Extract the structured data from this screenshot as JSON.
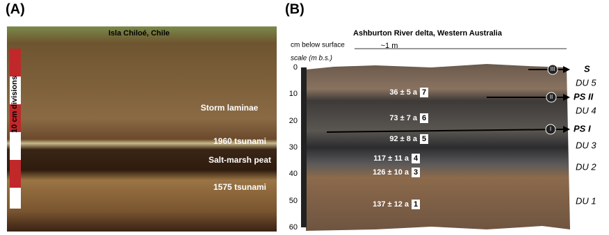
{
  "panel_a": {
    "label": "(A)",
    "location": "Isla Chiloé, Chile",
    "ruler": "10 cm divisions",
    "layers": [
      "Storm laminae",
      "1960 tsunami",
      "Salt-marsh peat",
      "1575 tsunami"
    ]
  },
  "panel_b": {
    "label": "(B)",
    "title": "Ashburton River delta, Western Australia",
    "depth_label": "cm below surface",
    "width_label": "~1 m",
    "scale_label": "scale (m b.s.)",
    "scale_ticks": [
      "0",
      "10",
      "20",
      "30",
      "40",
      "50",
      "60"
    ],
    "ages": [
      {
        "age": "36 ± 5 a",
        "sample": "7"
      },
      {
        "age": "73 ± 7 a",
        "sample": "6"
      },
      {
        "age": "92 ± 8 a",
        "sample": "5"
      },
      {
        "age": "117 ± 11 a",
        "sample": "4"
      },
      {
        "age": "126 ± 10 a",
        "sample": "3"
      },
      {
        "age": "137 ± 12 a",
        "sample": "1"
      }
    ],
    "surfaces": [
      {
        "marker": "III",
        "name": "S"
      },
      {
        "marker": "II",
        "name": "PS II"
      },
      {
        "marker": "I",
        "name": "PS I"
      }
    ],
    "units": [
      "DU 5",
      "DU 4",
      "DU 3",
      "DU 2",
      "DU 1"
    ]
  }
}
